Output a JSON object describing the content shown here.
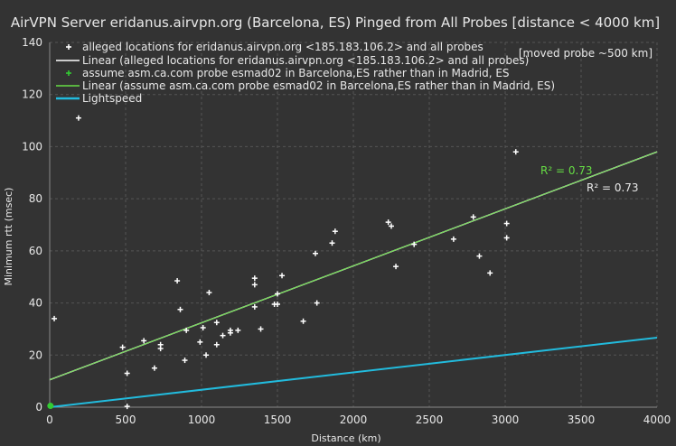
{
  "chart_data": {
    "type": "scatter",
    "title": "AirVPN Server eridanus.airvpn.org (Barcelona, ES) Pinged from All Probes [distance < 4000 km]",
    "xlabel": "Distance (km)",
    "ylabel": "Minimum rtt (msec)",
    "xlim": [
      0,
      4000
    ],
    "ylim": [
      0,
      140
    ],
    "xticks": [
      "0",
      "500",
      "1000",
      "1500",
      "2000",
      "2500",
      "3000",
      "3500",
      "4000"
    ],
    "yticks": [
      "0",
      "20",
      "40",
      "60",
      "80",
      "100",
      "120",
      "140"
    ],
    "grid": true,
    "legend_position": "top-left",
    "annotation": "[moved probe ~500 km]",
    "series": [
      {
        "name": "alleged locations for eridanus.airvpn.org <185.183.106.2> and all probes",
        "kind": "points",
        "marker": "+",
        "color": "#ffffff",
        "points": [
          [
            30,
            34
          ],
          [
            190,
            111
          ],
          [
            480,
            23
          ],
          [
            510,
            13
          ],
          [
            510,
            0.3
          ],
          [
            620,
            25.5
          ],
          [
            690,
            15
          ],
          [
            730,
            22.5
          ],
          [
            730,
            24
          ],
          [
            840,
            48.5
          ],
          [
            860,
            37.5
          ],
          [
            890,
            18
          ],
          [
            900,
            29.5
          ],
          [
            990,
            25
          ],
          [
            1010,
            30.5
          ],
          [
            1030,
            20
          ],
          [
            1050,
            44
          ],
          [
            1100,
            32.5
          ],
          [
            1100,
            24
          ],
          [
            1140,
            27.5
          ],
          [
            1190,
            28.5
          ],
          [
            1190,
            29.5
          ],
          [
            1240,
            29.5
          ],
          [
            1350,
            38.5
          ],
          [
            1350,
            47
          ],
          [
            1350,
            49.5
          ],
          [
            1390,
            30
          ],
          [
            1480,
            39.5
          ],
          [
            1500,
            39.5
          ],
          [
            1500,
            43.5
          ],
          [
            1530,
            50.5
          ],
          [
            1670,
            33
          ],
          [
            1750,
            59
          ],
          [
            1760,
            40
          ],
          [
            1860,
            63
          ],
          [
            1880,
            67.5
          ],
          [
            2230,
            71
          ],
          [
            2250,
            69.5
          ],
          [
            2280,
            54
          ],
          [
            2400,
            62.5
          ],
          [
            2660,
            64.5
          ],
          [
            2790,
            73
          ],
          [
            2830,
            58
          ],
          [
            2900,
            51.5
          ],
          [
            3010,
            70.5
          ],
          [
            3010,
            65
          ],
          [
            3070,
            98
          ]
        ]
      },
      {
        "name": "Linear (alleged locations for eridanus.airvpn.org <185.183.106.2> and all probes)",
        "kind": "line",
        "color": "#ffffff",
        "line": [
          [
            0,
            10.5
          ],
          [
            4000,
            98
          ]
        ],
        "r2_label": "R² = 0.73"
      },
      {
        "name": "assume asm.ca.com probe esmad02 in Barcelona,ES rather than in Madrid, ES",
        "kind": "points",
        "marker": "+",
        "color": "#33cc33",
        "points": [
          [
            5,
            0.5
          ]
        ]
      },
      {
        "name": "Linear (assume asm.ca.com probe esmad02 in Barcelona,ES rather than in Madrid, ES)",
        "kind": "line",
        "color": "#66dd44",
        "line": [
          [
            0,
            10.5
          ],
          [
            4000,
            98
          ]
        ],
        "r2_label": "R² = 0.73"
      },
      {
        "name": "Lightspeed",
        "kind": "line",
        "color": "#22bbdd",
        "line": [
          [
            0,
            0
          ],
          [
            4000,
            26.7
          ]
        ]
      }
    ]
  }
}
